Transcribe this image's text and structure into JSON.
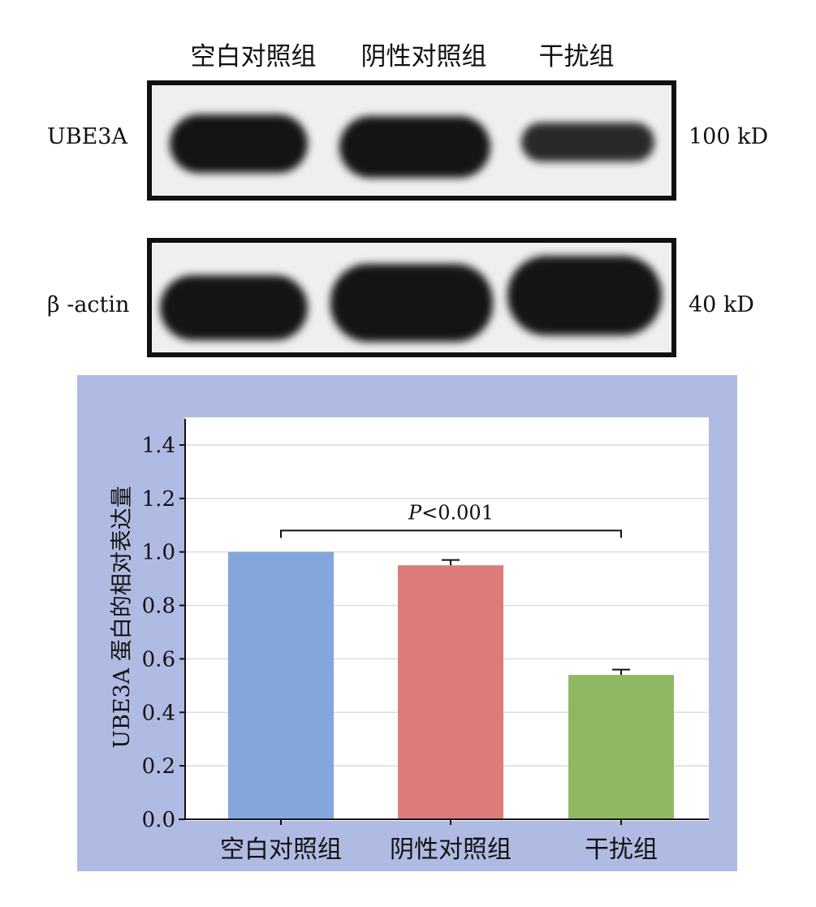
{
  "blot": {
    "lanes": [
      "空白对照组",
      "阴性对照组",
      "干扰组"
    ],
    "rows": [
      {
        "label": "UBE3A",
        "size": "100 kD"
      },
      {
        "label": "β -actin",
        "size": "40 kD"
      }
    ]
  },
  "colors": {
    "panel_background": "#b0bbe3",
    "gridline": "#dcdcdc",
    "bar_blank": "#83a6db",
    "bar_negative": "#dc7c7a",
    "bar_interference": "#90b762"
  },
  "chart_data": {
    "type": "bar",
    "categories": [
      "空白对照组",
      "阴性对照组",
      "干扰组"
    ],
    "values": [
      1.0,
      0.95,
      0.54
    ],
    "error": [
      0.0,
      0.02,
      0.02
    ],
    "ylabel": "UBE3A 蛋白的相对表达量",
    "ylim": [
      0,
      1.4
    ],
    "yticks": [
      0.0,
      0.2,
      0.4,
      0.6,
      0.8,
      1.0,
      1.2,
      1.4
    ],
    "ytick_labels": [
      "0.0",
      "0.2",
      "0.4",
      "0.6",
      "0.8",
      "1.0",
      "1.2",
      "1.4"
    ],
    "grid": true,
    "annotation": {
      "text": "P<0.001",
      "italic_part": "P",
      "rest": "<0.001",
      "from_category": 0,
      "to_category": 2,
      "y": 1.08
    }
  }
}
